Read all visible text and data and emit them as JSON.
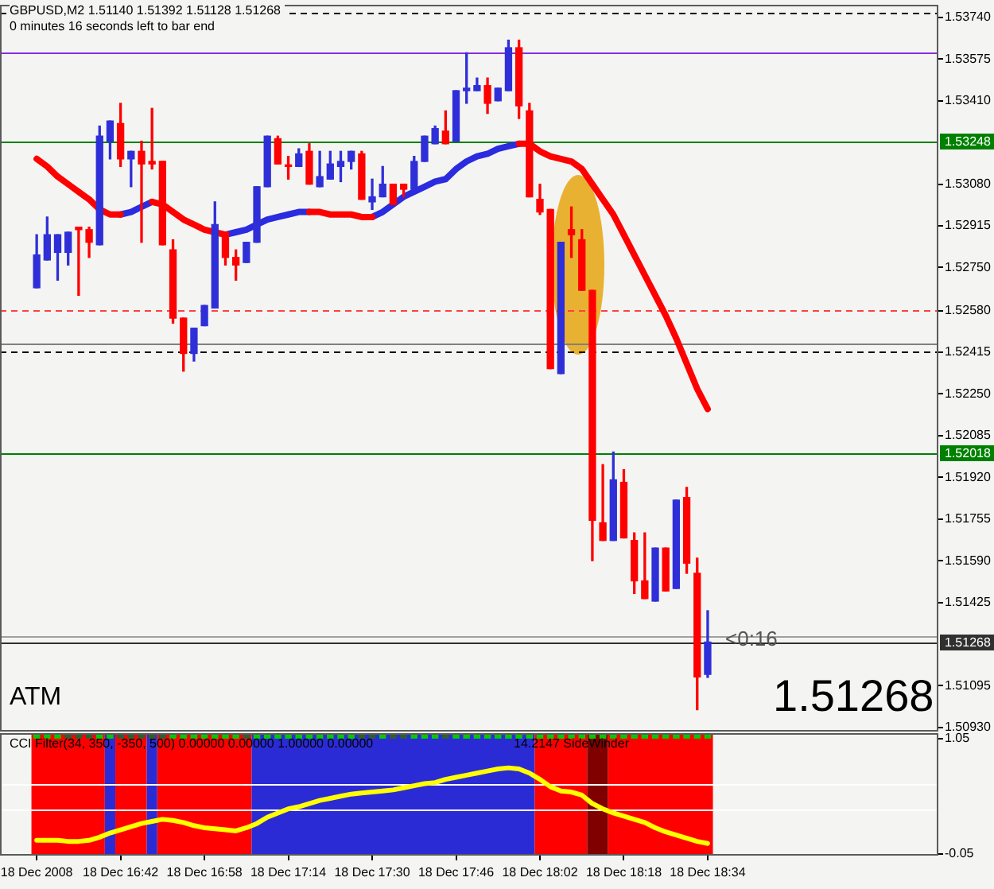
{
  "chart_data": [
    {
      "type": "candlestick",
      "title": "GBPUSD,M2 1.51140 1.51392 1.51128 1.51268",
      "subtitle": "0 minutes 16 seconds left to bar end",
      "annotations": [
        "ATM",
        "<0:16",
        "1.51268"
      ],
      "tick_labels": "y",
      "x": [
        "2008-12-18T16:26",
        "2008-12-18T16:28",
        "2008-12-18T16:30",
        "2008-12-18T16:32",
        "2008-12-18T16:34",
        "2008-12-18T16:36",
        "2008-12-18T16:38",
        "2008-12-18T16:40",
        "2008-12-18T16:42",
        "2008-12-18T16:44",
        "2008-12-18T16:46",
        "2008-12-18T16:48",
        "2008-12-18T16:50",
        "2008-12-18T16:52",
        "2008-12-18T16:54",
        "2008-12-18T16:56",
        "2008-12-18T16:58",
        "2008-12-18T17:00",
        "2008-12-18T17:02",
        "2008-12-18T17:04",
        "2008-12-18T17:06",
        "2008-12-18T17:08",
        "2008-12-18T17:10",
        "2008-12-18T17:12",
        "2008-12-18T17:14",
        "2008-12-18T17:16",
        "2008-12-18T17:18",
        "2008-12-18T17:20",
        "2008-12-18T17:22",
        "2008-12-18T17:24",
        "2008-12-18T17:26",
        "2008-12-18T17:28",
        "2008-12-18T17:30",
        "2008-12-18T17:32",
        "2008-12-18T17:34",
        "2008-12-18T17:36",
        "2008-12-18T17:38",
        "2008-12-18T17:40",
        "2008-12-18T17:42",
        "2008-12-18T17:44",
        "2008-12-18T17:46",
        "2008-12-18T17:48",
        "2008-12-18T17:50",
        "2008-12-18T17:52",
        "2008-12-18T17:54",
        "2008-12-18T17:56",
        "2008-12-18T17:58",
        "2008-12-18T18:00",
        "2008-12-18T18:02",
        "2008-12-18T18:04",
        "2008-12-18T18:06",
        "2008-12-18T18:08",
        "2008-12-18T18:10",
        "2008-12-18T18:12",
        "2008-12-18T18:14",
        "2008-12-18T18:16",
        "2008-12-18T18:18",
        "2008-12-18T18:20",
        "2008-12-18T18:22",
        "2008-12-18T18:24",
        "2008-12-18T18:26",
        "2008-12-18T18:28",
        "2008-12-18T18:30",
        "2008-12-18T18:32",
        "2008-12-18T18:34"
      ],
      "xlim": [
        "2008-12-18T16:19",
        "2008-12-18T19:18"
      ],
      "ylim": [
        1.5092,
        1.5379
      ],
      "yticks": [
        {
          "value": 1.5374,
          "label": "1.53740"
        },
        {
          "value": 1.53575,
          "label": "1.53575"
        },
        {
          "value": 1.5341,
          "label": "1.53410"
        },
        {
          "value": 1.5308,
          "label": "1.53080"
        },
        {
          "value": 1.52915,
          "label": "1.52915"
        },
        {
          "value": 1.5275,
          "label": "1.52750"
        },
        {
          "value": 1.5258,
          "label": "1.52580"
        },
        {
          "value": 1.52415,
          "label": "1.52415"
        },
        {
          "value": 1.5225,
          "label": "1.52250"
        },
        {
          "value": 1.52085,
          "label": "1.52085"
        },
        {
          "value": 1.5192,
          "label": "1.51920"
        },
        {
          "value": 1.51755,
          "label": "1.51755"
        },
        {
          "value": 1.5159,
          "label": "1.51590"
        },
        {
          "value": 1.51425,
          "label": "1.51425"
        },
        {
          "value": 1.51095,
          "label": "1.51095"
        },
        {
          "value": 1.5093,
          "label": "1.50930"
        }
      ],
      "ohlc": [
        [
          1.5267,
          1.5288,
          1.5267,
          1.528
        ],
        [
          1.5278,
          1.5295,
          1.5278,
          1.5288
        ],
        [
          1.5281,
          1.5288,
          1.527,
          1.5288
        ],
        [
          1.5281,
          1.5289,
          1.5276,
          1.5289
        ],
        [
          1.5291,
          1.5291,
          1.5264,
          1.529
        ],
        [
          1.529,
          1.5291,
          1.5279,
          1.5285
        ],
        [
          1.5284,
          1.5331,
          1.5284,
          1.5327
        ],
        [
          1.5325,
          1.5333,
          1.5318,
          1.5333
        ],
        [
          1.5332,
          1.534,
          1.5315,
          1.5318
        ],
        [
          1.5318,
          1.5321,
          1.5307,
          1.5321
        ],
        [
          1.5321,
          1.5325,
          1.5285,
          1.5316
        ],
        [
          1.5317,
          1.5338,
          1.5314,
          1.5316
        ],
        [
          1.5317,
          1.5317,
          1.5284,
          1.5284
        ],
        [
          1.5282,
          1.5286,
          1.5253,
          1.5255
        ],
        [
          1.5255,
          1.5255,
          1.5234,
          1.5241
        ],
        [
          1.5241,
          1.5251,
          1.5238,
          1.5251
        ],
        [
          1.5252,
          1.526,
          1.5252,
          1.526
        ],
        [
          1.5259,
          1.5301,
          1.5259,
          1.5292
        ],
        [
          1.5289,
          1.5289,
          1.5276,
          1.5279
        ],
        [
          1.5279,
          1.5282,
          1.527,
          1.5276
        ],
        [
          1.5277,
          1.5285,
          1.5277,
          1.5285
        ],
        [
          1.5285,
          1.5307,
          1.5285,
          1.5307
        ],
        [
          1.5307,
          1.5327,
          1.5307,
          1.5327
        ],
        [
          1.5326,
          1.5327,
          1.5316,
          1.5316
        ],
        [
          1.5315,
          1.5319,
          1.531,
          1.5315
        ],
        [
          1.5315,
          1.5322,
          1.5315,
          1.532
        ],
        [
          1.5321,
          1.5324,
          1.5308,
          1.5308
        ],
        [
          1.5307,
          1.5321,
          1.5307,
          1.5311
        ],
        [
          1.531,
          1.5321,
          1.531,
          1.5316
        ],
        [
          1.5315,
          1.5321,
          1.5309,
          1.5317
        ],
        [
          1.5317,
          1.5321,
          1.5314,
          1.5321
        ],
        [
          1.532,
          1.5321,
          1.5302,
          1.5302
        ],
        [
          1.5301,
          1.531,
          1.5298,
          1.5303
        ],
        [
          1.5303,
          1.5315,
          1.5303,
          1.5308
        ],
        [
          1.5308,
          1.5308,
          1.53,
          1.53
        ],
        [
          1.5308,
          1.5308,
          1.5303,
          1.5306
        ],
        [
          1.5306,
          1.5319,
          1.5306,
          1.5317
        ],
        [
          1.5317,
          1.5327,
          1.5317,
          1.5327
        ],
        [
          1.5324,
          1.5331,
          1.5324,
          1.533
        ],
        [
          1.5329,
          1.5337,
          1.5324,
          1.5324
        ],
        [
          1.5325,
          1.5345,
          1.5325,
          1.5345
        ],
        [
          1.5345,
          1.536,
          1.534,
          1.5346
        ],
        [
          1.5345,
          1.535,
          1.5345,
          1.5347
        ],
        [
          1.5347,
          1.535,
          1.5336,
          1.534
        ],
        [
          1.5341,
          1.5346,
          1.5341,
          1.5346
        ],
        [
          1.5345,
          1.5365,
          1.5345,
          1.5362
        ],
        [
          1.5362,
          1.5365,
          1.5334,
          1.5339
        ],
        [
          1.5337,
          1.534,
          1.5303,
          1.5303
        ],
        [
          1.5302,
          1.5308,
          1.5296,
          1.5297
        ],
        [
          1.5298,
          1.5298,
          1.5235,
          1.5235
        ],
        [
          1.5233,
          1.5285,
          1.5233,
          1.5285
        ],
        [
          1.529,
          1.5299,
          1.5279,
          1.5288
        ],
        [
          1.5286,
          1.529,
          1.5266,
          1.5266
        ],
        [
          1.5266,
          1.5266,
          1.5159,
          1.5175
        ],
        [
          1.5174,
          1.5197,
          1.5167,
          1.5167
        ],
        [
          1.5167,
          1.5202,
          1.5167,
          1.5191
        ],
        [
          1.519,
          1.5195,
          1.5168,
          1.5168
        ],
        [
          1.5167,
          1.517,
          1.5146,
          1.5151
        ],
        [
          1.5151,
          1.517,
          1.5144,
          1.5144
        ],
        [
          1.5143,
          1.5164,
          1.5143,
          1.5164
        ],
        [
          1.5164,
          1.5164,
          1.5147,
          1.5147
        ],
        [
          1.5148,
          1.5183,
          1.5148,
          1.5183
        ],
        [
          1.5184,
          1.5188,
          1.5154,
          1.5158
        ],
        [
          1.5154,
          1.516,
          1.51,
          1.5113
        ],
        [
          1.5114,
          1.51392,
          1.51128,
          1.51268
        ]
      ],
      "colors": [
        "#2f2fd8",
        "#2f2fd8",
        "#2f2fd8",
        "#2f2fd8",
        "#ff0000",
        "#ff0000",
        "#2f2fd8",
        "#2f2fd8",
        "#ff0000",
        "#2f2fd8",
        "#ff0000",
        "#ff0000",
        "#ff0000",
        "#ff0000",
        "#ff0000",
        "#2f2fd8",
        "#2f2fd8",
        "#2f2fd8",
        "#ff0000",
        "#ff0000",
        "#2f2fd8",
        "#2f2fd8",
        "#2f2fd8",
        "#ff0000",
        "#ff0000",
        "#2f2fd8",
        "#ff0000",
        "#2f2fd8",
        "#2f2fd8",
        "#2f2fd8",
        "#2f2fd8",
        "#ff0000",
        "#2f2fd8",
        "#2f2fd8",
        "#ff0000",
        "#ff0000",
        "#2f2fd8",
        "#2f2fd8",
        "#2f2fd8",
        "#ff0000",
        "#2f2fd8",
        "#2f2fd8",
        "#2f2fd8",
        "#ff0000",
        "#2f2fd8",
        "#2f2fd8",
        "#ff0000",
        "#ff0000",
        "#ff0000",
        "#ff0000",
        "#2f2fd8",
        "#ff0000",
        "#ff0000",
        "#ff0000",
        "#ff0000",
        "#2f2fd8",
        "#ff0000",
        "#ff0000",
        "#ff0000",
        "#2f2fd8",
        "#ff0000",
        "#2f2fd8",
        "#ff0000",
        "#ff0000",
        "#2f2fd8"
      ],
      "series": [
        {
          "type": "line",
          "color": "#ff0000",
          "values": [
            1.5318,
            1.5315,
            1.5311,
            1.5308,
            1.5305,
            1.5302,
            1.5298,
            1.5296,
            1.5296,
            null,
            null,
            1.5301,
            1.53,
            1.5297,
            1.5294,
            1.5292,
            1.529,
            1.5289,
            1.5288,
            null,
            null,
            null,
            null,
            null,
            null,
            null,
            1.5297,
            1.5297,
            1.5296,
            1.5296,
            1.5296,
            1.5295,
            1.5295,
            null,
            null,
            null,
            null,
            null,
            null,
            null,
            null,
            null,
            null,
            null,
            null,
            null,
            1.5324,
            1.5324,
            1.5321,
            1.5319,
            1.5318,
            1.5317,
            1.5314,
            1.5308,
            1.5302,
            1.5296,
            1.5288,
            1.528,
            1.5272,
            1.5264,
            1.5256,
            1.5247,
            1.5237,
            1.5227,
            1.5219
          ]
        },
        {
          "type": "line",
          "color": "#2b2be0",
          "values": [
            null,
            null,
            null,
            null,
            null,
            null,
            null,
            null,
            1.5296,
            1.5297,
            1.5299,
            1.5301,
            null,
            null,
            null,
            null,
            null,
            null,
            1.5288,
            1.5289,
            1.529,
            1.5292,
            1.5294,
            1.5295,
            1.5296,
            1.5297,
            1.5297,
            null,
            null,
            null,
            null,
            null,
            1.5295,
            1.5297,
            1.53,
            1.5303,
            1.5305,
            1.5307,
            1.5309,
            1.531,
            1.5314,
            1.5317,
            1.5319,
            1.532,
            1.5322,
            1.5323,
            1.5324,
            null,
            null,
            null,
            null,
            null,
            null,
            null,
            null,
            null,
            null,
            null,
            null,
            null,
            null,
            null,
            null,
            null,
            null
          ]
        }
      ],
      "ref_lines": [
        {
          "axis": "y",
          "value": 1.5376,
          "color": "#000000",
          "line_style": "dashed"
        },
        {
          "axis": "y",
          "value": 1.536,
          "color": "#8a2be2"
        },
        {
          "axis": "y",
          "value": 1.53248,
          "label": "1.53248",
          "color": "#008000"
        },
        {
          "axis": "y",
          "value": 1.5258,
          "color": "#ff4040",
          "line_style": "dashed"
        },
        {
          "axis": "y",
          "value": 1.5245,
          "color": "#808080"
        },
        {
          "axis": "y",
          "value": 1.5242,
          "color": "#000000",
          "line_style": "dashed"
        },
        {
          "axis": "y",
          "value": 1.52018,
          "label": "1.52018",
          "color": "#008000"
        },
        {
          "axis": "y",
          "value": 1.5129,
          "color": "#a0a0a0"
        },
        {
          "axis": "y",
          "value": 1.51268,
          "label": "1.51268",
          "color": "#303030"
        }
      ]
    },
    {
      "type": "line",
      "title": "CCI Filter(34, 350, -350, 500) 0.00000 0.00000 1.00000 0.00000",
      "annotations": [
        "14.2147 SideWinder"
      ],
      "x": [
        "2008-12-18T16:26",
        "2008-12-18T16:28",
        "2008-12-18T16:30",
        "2008-12-18T16:32",
        "2008-12-18T16:34",
        "2008-12-18T16:36",
        "2008-12-18T16:38",
        "2008-12-18T16:40",
        "2008-12-18T16:42",
        "2008-12-18T16:44",
        "2008-12-18T16:46",
        "2008-12-18T16:48",
        "2008-12-18T16:50",
        "2008-12-18T16:52",
        "2008-12-18T16:54",
        "2008-12-18T16:56",
        "2008-12-18T16:58",
        "2008-12-18T17:00",
        "2008-12-18T17:02",
        "2008-12-18T17:04",
        "2008-12-18T17:06",
        "2008-12-18T17:08",
        "2008-12-18T17:10",
        "2008-12-18T17:12",
        "2008-12-18T17:14",
        "2008-12-18T17:16",
        "2008-12-18T17:18",
        "2008-12-18T17:20",
        "2008-12-18T17:22",
        "2008-12-18T17:24",
        "2008-12-18T17:26",
        "2008-12-18T17:28",
        "2008-12-18T17:30",
        "2008-12-18T17:32",
        "2008-12-18T17:34",
        "2008-12-18T17:36",
        "2008-12-18T17:38",
        "2008-12-18T17:40",
        "2008-12-18T17:42",
        "2008-12-18T17:44",
        "2008-12-18T17:46",
        "2008-12-18T17:48",
        "2008-12-18T17:50",
        "2008-12-18T17:52",
        "2008-12-18T17:54",
        "2008-12-18T17:56",
        "2008-12-18T17:58",
        "2008-12-18T18:00",
        "2008-12-18T18:02",
        "2008-12-18T18:04",
        "2008-12-18T18:06",
        "2008-12-18T18:08",
        "2008-12-18T18:10",
        "2008-12-18T18:12",
        "2008-12-18T18:14",
        "2008-12-18T18:16",
        "2008-12-18T18:18",
        "2008-12-18T18:20",
        "2008-12-18T18:22",
        "2008-12-18T18:24",
        "2008-12-18T18:26",
        "2008-12-18T18:28",
        "2008-12-18T18:30",
        "2008-12-18T18:32",
        "2008-12-18T18:34"
      ],
      "xlim": [
        "2008-12-18T16:19",
        "2008-12-18T19:18"
      ],
      "xticks": [
        {
          "value": "2008-12-18T16:26",
          "label": "18 Dec 2008"
        },
        {
          "value": "2008-12-18T16:42",
          "label": "18 Dec 16:42"
        },
        {
          "value": "2008-12-18T16:58",
          "label": "18 Dec 16:58"
        },
        {
          "value": "2008-12-18T17:14",
          "label": "18 Dec 17:14"
        },
        {
          "value": "2008-12-18T17:30",
          "label": "18 Dec 17:30"
        },
        {
          "value": "2008-12-18T17:46",
          "label": "18 Dec 17:46"
        },
        {
          "value": "2008-12-18T18:02",
          "label": "18 Dec 18:02"
        },
        {
          "value": "2008-12-18T18:18",
          "label": "18 Dec 18:18"
        },
        {
          "value": "2008-12-18T18:34",
          "label": "18 Dec 18:34"
        }
      ],
      "ylim": [
        -0.05,
        1.1
      ],
      "yticks": [
        1.05,
        -0.05
      ],
      "bands": [
        {
          "axis": "x",
          "from": "2008-12-18T16:25",
          "to": "2008-12-18T16:39",
          "color": "#ff0000"
        },
        {
          "axis": "x",
          "from": "2008-12-18T16:39",
          "to": "2008-12-18T16:41",
          "color": "#2b2bd6"
        },
        {
          "axis": "x",
          "from": "2008-12-18T16:41",
          "to": "2008-12-18T16:47",
          "color": "#ff0000"
        },
        {
          "axis": "x",
          "from": "2008-12-18T16:47",
          "to": "2008-12-18T16:49",
          "color": "#2b2bd6"
        },
        {
          "axis": "x",
          "from": "2008-12-18T16:49",
          "to": "2008-12-18T17:07",
          "color": "#ff0000"
        },
        {
          "axis": "x",
          "from": "2008-12-18T17:07",
          "to": "2008-12-18T18:01",
          "color": "#2b2bd6"
        },
        {
          "axis": "x",
          "from": "2008-12-18T18:01",
          "to": "2008-12-18T18:11",
          "color": "#ff0000"
        },
        {
          "axis": "x",
          "from": "2008-12-18T18:11",
          "to": "2008-12-18T18:15",
          "color": "#800000"
        },
        {
          "axis": "x",
          "from": "2008-12-18T18:15",
          "to": "2008-12-18T18:35",
          "color": "#ff0000"
        }
      ],
      "series": [
        {
          "type": "line",
          "color": "#ffff00",
          "values": [
            0.08,
            0.08,
            0.08,
            0.07,
            0.07,
            0.08,
            0.11,
            0.15,
            0.18,
            0.21,
            0.24,
            0.26,
            0.28,
            0.27,
            0.25,
            0.22,
            0.2,
            0.19,
            0.18,
            0.17,
            0.2,
            0.24,
            0.3,
            0.34,
            0.38,
            0.4,
            0.43,
            0.46,
            0.48,
            0.5,
            0.52,
            0.53,
            0.54,
            0.55,
            0.56,
            0.58,
            0.6,
            0.62,
            0.63,
            0.66,
            0.68,
            0.7,
            0.72,
            0.74,
            0.76,
            0.77,
            0.76,
            0.72,
            0.66,
            0.59,
            0.55,
            0.54,
            0.51,
            0.43,
            0.38,
            0.34,
            0.31,
            0.28,
            0.25,
            0.2,
            0.16,
            0.13,
            0.1,
            0.07,
            0.05
          ]
        },
        {
          "type": "scatter",
          "marker": "square",
          "values": [
            1.08,
            1.08,
            1.08,
            1.08,
            1.08,
            1.08,
            1.08,
            1.08,
            1.08,
            1.08,
            1.08,
            1.08,
            1.08,
            1.08,
            1.08,
            1.08,
            1.08,
            1.08,
            1.08,
            1.08,
            1.08,
            1.08,
            1.08,
            1.08,
            1.08,
            1.08,
            1.08,
            1.08,
            1.08,
            1.08,
            1.08,
            1.08,
            1.08,
            1.08,
            1.08,
            1.08,
            1.08,
            1.08,
            1.08,
            1.08,
            1.08,
            1.08,
            1.08,
            1.08,
            1.08,
            1.08,
            1.08,
            1.08,
            1.08,
            1.08,
            1.08,
            1.08,
            1.08,
            1.08,
            1.08,
            1.08,
            1.08,
            1.08,
            1.08,
            1.08,
            1.08,
            1.08,
            1.08,
            1.08,
            1.08
          ],
          "colors": [
            "#00cc00",
            "#00cc00",
            "#00cc00",
            "#2f5f2f",
            "#2f5f2f",
            "#2f5f2f",
            "#00cc00",
            "#00cc00",
            "#2f5f2f",
            "#2f5f2f",
            "#2f5f2f",
            "#2f5f2f",
            "#2f5f2f",
            "#00cc00",
            "#00cc00",
            "#00cc00",
            "#00cc00",
            "#00cc00",
            "#00cc00",
            "#00cc00",
            "#2f5f2f",
            "#00cc00",
            "#00cc00",
            "#00cc00",
            "#00cc00",
            "#00cc00",
            "#00cc00",
            "#00cc00",
            "#00cc00",
            "#00cc00",
            "#00cc00",
            "#2f5f2f",
            "#2f5f2f",
            "#00cc00",
            "#2f5f2f",
            "#2f5f2f",
            "#00cc00",
            "#00cc00",
            "#00cc00",
            "#2f5f2f",
            "#00cc00",
            "#00cc00",
            "#00cc00",
            "#00cc00",
            "#00cc00",
            "#00cc00",
            "#00cc00",
            "#00cc00",
            "#00cc00",
            "#00cc00",
            "#00cc00",
            "#00cc00",
            "#00cc00",
            "#00cc00",
            "#00cc00",
            "#00cc00",
            "#00cc00",
            "#00cc00",
            "#00cc00",
            "#00cc00",
            "#00cc00",
            "#00cc00",
            "#00cc00",
            "#00cc00",
            "#00cc00"
          ]
        }
      ],
      "ref_lines": [
        {
          "axis": "y",
          "value": 0.62,
          "color": "#ffffff"
        },
        {
          "axis": "y",
          "value": 0.38,
          "color": "#ffffff"
        }
      ]
    }
  ]
}
